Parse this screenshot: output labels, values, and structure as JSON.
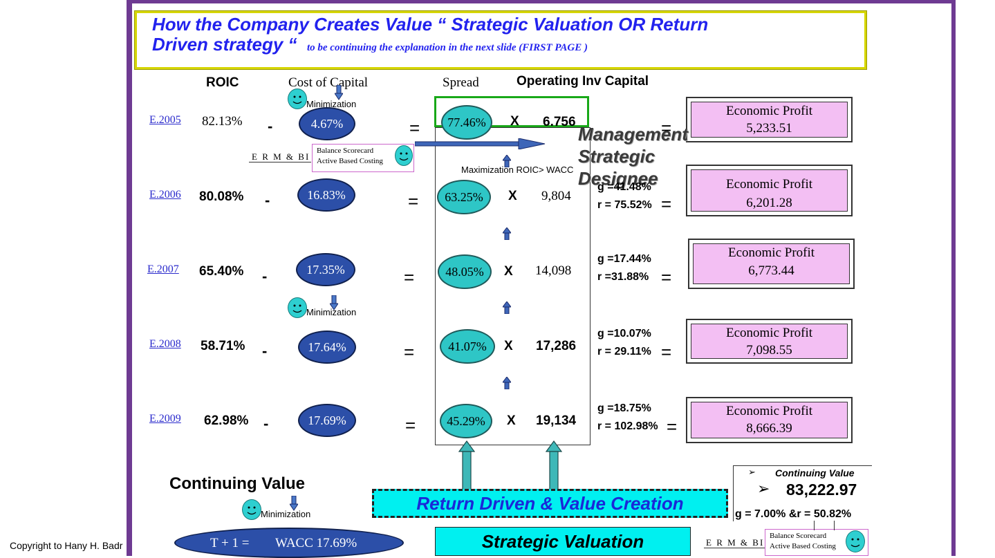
{
  "title": {
    "line1": "How the Company Creates Value “ Strategic Valuation OR Return",
    "line2": "Driven strategy “",
    "note": "to be continuing the explanation in the next slide      (FIRST  PAGE )"
  },
  "headers": {
    "roic": "ROIC",
    "cost_of_capital": "Cost of Capital",
    "spread": "Spread",
    "operating_inv_capital": "Operating Inv  Capital"
  },
  "rows": [
    {
      "year": "E.2005",
      "roic": "82.13%",
      "minus": "-",
      "wacc": "4.67%",
      "eq": "=",
      "spread": "77.46%",
      "x": "X",
      "capital": "6.756",
      "eq2": "=",
      "g": "",
      "r": "",
      "ep_label": "Economic Profit",
      "ep_value": "5,233.51"
    },
    {
      "year": "E.2006",
      "roic": "80.08%",
      "minus": "-",
      "wacc": "16.83%",
      "eq": "=",
      "spread": "63.25%",
      "x": "X",
      "capital": "9,804",
      "eq2": "=",
      "g": "g =41.48%",
      "r": "r = 75.52%",
      "ep_label": "Economic Profit",
      "ep_value": "6,201.28"
    },
    {
      "year": "E.2007",
      "roic": "65.40%",
      "minus": "-",
      "wacc": "17.35%",
      "eq": "=",
      "spread": "48.05%",
      "x": "X",
      "capital": "14,098",
      "eq2": "=",
      "g": "g =17.44%",
      "r": "r =31.88%",
      "ep_label": "Economic Profit",
      "ep_value": "6,773.44"
    },
    {
      "year": "E.2008",
      "roic": "58.71%",
      "minus": "-",
      "wacc": "17.64%",
      "eq": "=",
      "spread": "41.07%",
      "x": "X",
      "capital": "17,286",
      "eq2": "=",
      "g": "g =10.07%",
      "r": "r = 29.11%",
      "ep_label": "Economic Profit",
      "ep_value": "7,098.55"
    },
    {
      "year": "E.2009",
      "roic": "62.98%",
      "minus": "-",
      "wacc": "17.69%",
      "eq": "=",
      "spread": "45.29%",
      "x": "X",
      "capital": "19,134",
      "eq2": "=",
      "g": "g =18.75%",
      "r": "r = 102.98%",
      "ep_label": "Economic Profit",
      "ep_value": "8,666.39"
    }
  ],
  "labels": {
    "minimization": "Minimization",
    "erm_bi": "E R M  &  BI",
    "bsc_line1": "Balance Scorecard",
    "bsc_line2": "Active Based Costing",
    "maximization": "Maximization ROIC> WACC",
    "management": [
      "Management",
      "Strategic",
      "Designee"
    ]
  },
  "continuing": {
    "title": "Continuing Value",
    "formula_left": "T  + 1 =",
    "formula_right": "WACC 17.69%",
    "box_label": "Continuing Value",
    "box_value": "83,222.97",
    "g_r": "g = 7.00% &r = 50.82%",
    "bullet": "➢"
  },
  "banners": {
    "return_driven": "Return Driven & Value Creation",
    "strategic_valuation": "Strategic Valuation"
  },
  "copyright": "Copyright to Hany H. Badr"
}
